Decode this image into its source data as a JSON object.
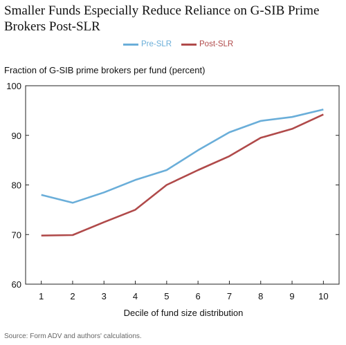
{
  "chart_data": {
    "type": "line",
    "title": "Smaller Funds Especially Reduce Reliance on G-SIB Prime Brokers Post-SLR",
    "ylabel": "Fraction of G-SIB prime brokers per fund (percent)",
    "xlabel": "Decile of fund size distribution",
    "source": "Source: Form ADV and authors' calculations.",
    "x": [
      1,
      2,
      3,
      4,
      5,
      6,
      7,
      8,
      9,
      10
    ],
    "ylim": [
      60,
      100
    ],
    "yticks": [
      60,
      70,
      80,
      90,
      100
    ],
    "legend_position": "top-center",
    "grid": false,
    "series": [
      {
        "name": "Pre-SLR",
        "color": "#6aaed9",
        "values": [
          78.0,
          76.4,
          78.5,
          81.0,
          83.0,
          87.0,
          90.6,
          92.9,
          93.7,
          95.2
        ]
      },
      {
        "name": "Post-SLR",
        "color": "#b04a4a",
        "values": [
          69.8,
          69.9,
          72.5,
          75.0,
          80.0,
          83.0,
          85.8,
          89.5,
          91.3,
          94.2
        ]
      }
    ]
  }
}
